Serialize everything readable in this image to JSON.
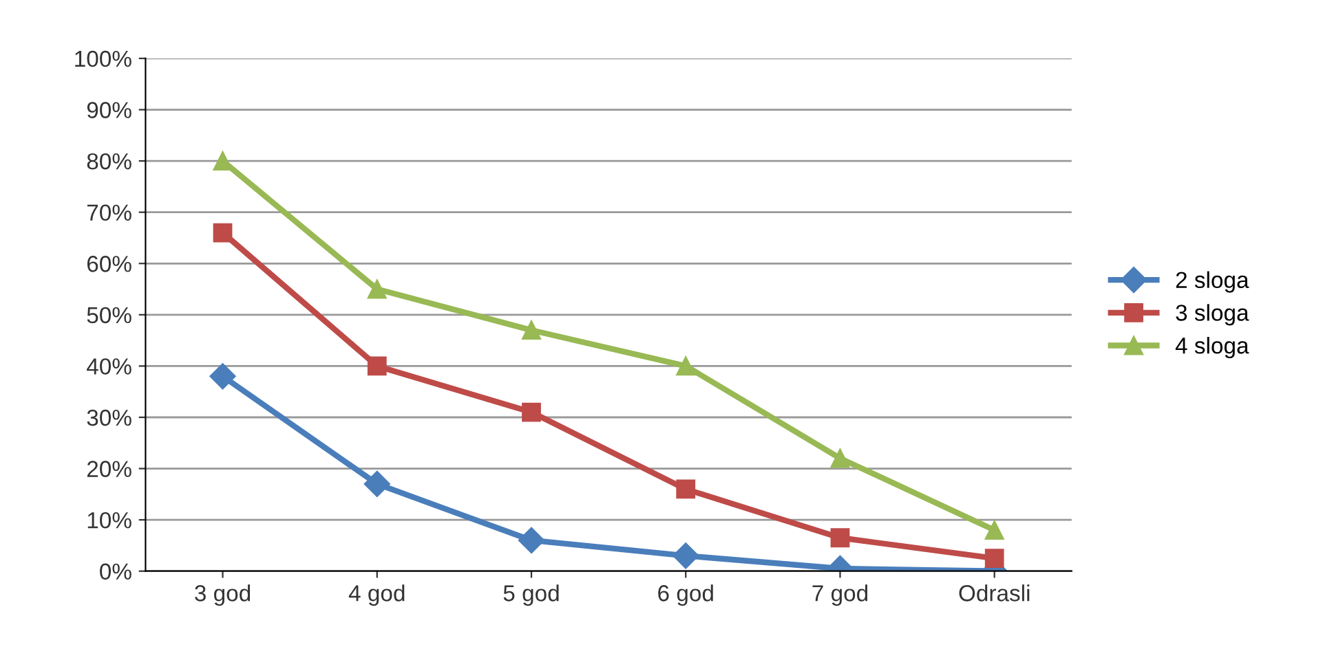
{
  "chart_data": {
    "type": "line",
    "categories": [
      "3 god",
      "4 god",
      "5 god",
      "6 god",
      "7 god",
      "Odrasli"
    ],
    "series": [
      {
        "name": "2 sloga",
        "color": "#4a7ebb",
        "marker": "diamond",
        "values": [
          38,
          17,
          6,
          3,
          0.5,
          0
        ]
      },
      {
        "name": "3 sloga",
        "color": "#be4b48",
        "marker": "square",
        "values": [
          66,
          40,
          31,
          16,
          6.5,
          2.5
        ]
      },
      {
        "name": "4 sloga",
        "color": "#98b954",
        "marker": "triangle",
        "values": [
          80,
          55,
          47,
          40,
          22,
          8
        ]
      }
    ],
    "ylim": [
      0,
      100
    ],
    "yticks": [
      {
        "value": 0,
        "label": "0%"
      },
      {
        "value": 10,
        "label": "10%"
      },
      {
        "value": 20,
        "label": "20%"
      },
      {
        "value": 30,
        "label": "30%"
      },
      {
        "value": 40,
        "label": "40%"
      },
      {
        "value": 50,
        "label": "50%"
      },
      {
        "value": 60,
        "label": "60%"
      },
      {
        "value": 70,
        "label": "70%"
      },
      {
        "value": 80,
        "label": "80%"
      },
      {
        "value": 90,
        "label": "90%"
      },
      {
        "value": 100,
        "label": "100%"
      }
    ],
    "grid": "y",
    "legend": "right",
    "line_style": "solid"
  }
}
